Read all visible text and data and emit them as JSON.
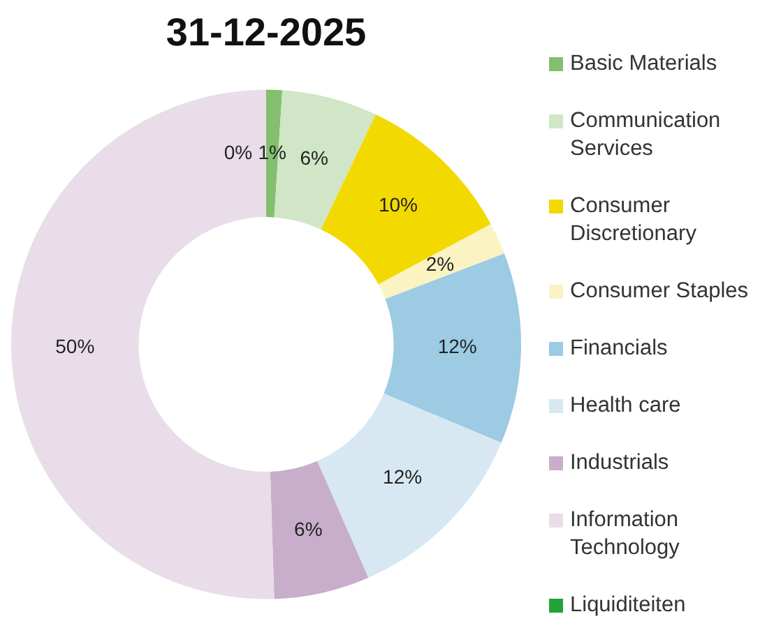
{
  "chart_data": {
    "type": "donut",
    "title": "31-12-2025",
    "categories": [
      "Basic Materials",
      "Communication Services",
      "Consumer Discretionary",
      "Consumer Staples",
      "Financials",
      "Health care",
      "Industrials",
      "Information Technology",
      "Liquiditeiten"
    ],
    "values": [
      1,
      6,
      10,
      2,
      12,
      12,
      6,
      50,
      0
    ],
    "colors": [
      "#83bf6f",
      "#d0e6c6",
      "#f2d900",
      "#fbf3c2",
      "#9ccbe3",
      "#d7e8f2",
      "#c8aecb",
      "#e8dde9",
      "#21a339"
    ],
    "value_labels": [
      "1%",
      "6%",
      "10%",
      "2%",
      "12%",
      "12%",
      "6%",
      "50%",
      "0%"
    ],
    "legend": "right"
  }
}
